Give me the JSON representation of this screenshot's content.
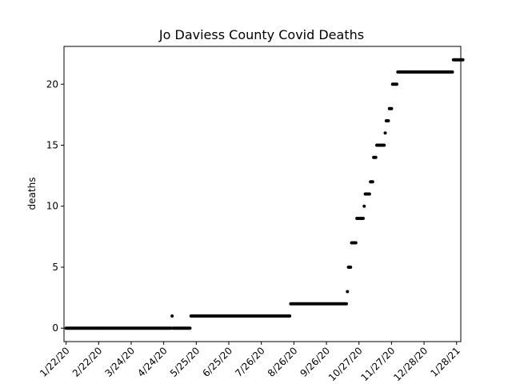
{
  "chart_data": {
    "type": "scatter",
    "title": "Jo Daviess County Covid Deaths",
    "xlabel": "",
    "ylabel": "deaths",
    "x_start": "2020-01-22",
    "x_end": "2021-01-28",
    "xlim": [
      "2020-01-22",
      "2021-01-28"
    ],
    "ylim": [
      -1.1,
      23.1
    ],
    "xticks": [
      "1/22/20",
      "2/22/20",
      "3/24/20",
      "4/24/20",
      "5/25/20",
      "6/25/20",
      "7/26/20",
      "8/26/20",
      "9/26/20",
      "10/27/20",
      "11/27/20",
      "12/28/20",
      "1/28/21"
    ],
    "yticks": [
      0,
      5,
      10,
      15,
      20
    ],
    "grid": false,
    "marker_color": "#000000",
    "segments": [
      {
        "from": "2020-01-22",
        "to": "2020-05-01",
        "deaths": 0
      },
      {
        "from": "2020-05-02",
        "to": "2020-05-02",
        "deaths": 1
      },
      {
        "from": "2020-05-03",
        "to": "2020-05-19",
        "deaths": 0
      },
      {
        "from": "2020-05-20",
        "to": "2020-08-22",
        "deaths": 1
      },
      {
        "from": "2020-08-23",
        "to": "2020-10-15",
        "deaths": 2
      },
      {
        "from": "2020-10-16",
        "to": "2020-10-16",
        "deaths": 3
      },
      {
        "from": "2020-10-17",
        "to": "2020-10-19",
        "deaths": 5
      },
      {
        "from": "2020-10-20",
        "to": "2020-10-24",
        "deaths": 7
      },
      {
        "from": "2020-10-25",
        "to": "2020-10-31",
        "deaths": 9
      },
      {
        "from": "2020-11-01",
        "to": "2020-11-01",
        "deaths": 10
      },
      {
        "from": "2020-11-02",
        "to": "2020-11-06",
        "deaths": 11
      },
      {
        "from": "2020-11-07",
        "to": "2020-11-09",
        "deaths": 12
      },
      {
        "from": "2020-11-10",
        "to": "2020-11-12",
        "deaths": 14
      },
      {
        "from": "2020-11-13",
        "to": "2020-11-20",
        "deaths": 15
      },
      {
        "from": "2020-11-21",
        "to": "2020-11-21",
        "deaths": 16
      },
      {
        "from": "2020-11-22",
        "to": "2020-11-24",
        "deaths": 17
      },
      {
        "from": "2020-11-25",
        "to": "2020-11-27",
        "deaths": 18
      },
      {
        "from": "2020-11-28",
        "to": "2020-12-02",
        "deaths": 20
      },
      {
        "from": "2020-12-03",
        "to": "2021-01-24",
        "deaths": 21
      },
      {
        "from": "2021-01-25",
        "to": "2021-02-03",
        "deaths": 22
      }
    ]
  }
}
